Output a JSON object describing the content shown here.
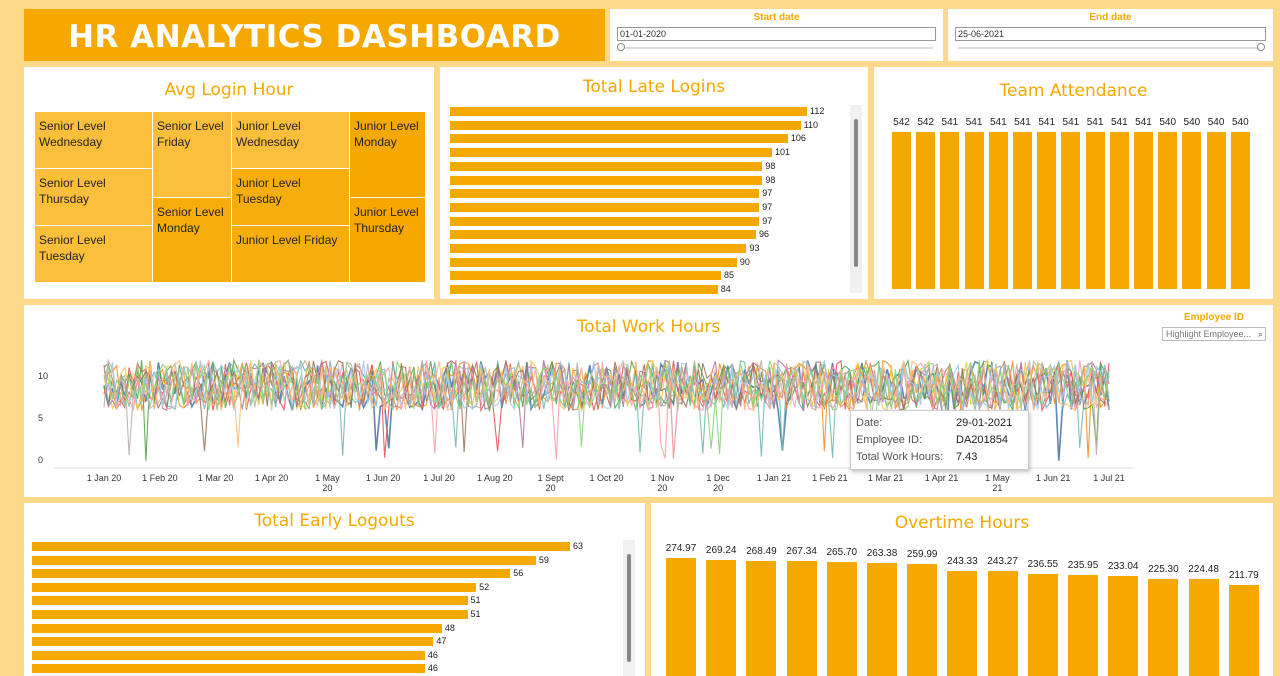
{
  "header": {
    "title": "HR ANALYTICS DASHBOARD"
  },
  "filters": {
    "start": {
      "label": "Start date",
      "value": "01-01-2020"
    },
    "end": {
      "label": "End date",
      "value": "25-06-2021"
    }
  },
  "login": {
    "title": "Avg Login Hour",
    "cells": [
      "Senior Level Wednesday",
      "Senior Level Thursday",
      "Senior Level Tuesday",
      "Senior Level Friday",
      "Senior Level Monday",
      "Junior Level Wednesday",
      "Junior Level Tuesday",
      "Junior Level Friday",
      "Junior Level Monday",
      "Junior Level Thursday"
    ]
  },
  "late": {
    "title": "Total Late Logins",
    "values": [
      112,
      110,
      106,
      101,
      98,
      98,
      97,
      97,
      97,
      96,
      93,
      90,
      85,
      84
    ]
  },
  "attendance": {
    "title": "Team Attendance",
    "values": [
      542,
      542,
      541,
      541,
      541,
      541,
      541,
      541,
      541,
      541,
      541,
      540,
      540,
      540,
      540
    ]
  },
  "work": {
    "title": "Total Work Hours",
    "employee_label": "Employee ID",
    "employee_placeholder": "Highlight Employee...",
    "yticks": [
      "10",
      "5",
      "0"
    ],
    "xticks": [
      "1 Jan 20",
      "1 Feb 20",
      "1 Mar 20",
      "1 Apr 20",
      "1 May 20",
      "1 Jun 20",
      "1 Jul 20",
      "1 Aug 20",
      "1 Sept 20",
      "1 Oct 20",
      "1 Nov 20",
      "1 Dec 20",
      "1 Jan 21",
      "1 Feb 21",
      "1 Mar 21",
      "1 Apr 21",
      "1 May 21",
      "1 Jun 21",
      "1 Jul 21"
    ],
    "tooltip": {
      "date_label": "Date:",
      "date": "29-01-2021",
      "emp_label": "Employee ID:",
      "emp": "DA201854",
      "hours_label": "Total Work Hours:",
      "hours": "7.43"
    },
    "series_colors": [
      "#4e79a7",
      "#f28e2b",
      "#e15759",
      "#76b7b2",
      "#59a14f",
      "#edc948",
      "#b07aa1",
      "#ff9da7",
      "#9c755f",
      "#bab0ac",
      "#a0cbe8",
      "#ffbe7d",
      "#8cd17d"
    ]
  },
  "early": {
    "title": "Total Early Logouts",
    "values": [
      63,
      59,
      56,
      52,
      51,
      51,
      48,
      47,
      46,
      46
    ]
  },
  "overtime": {
    "title": "Overtime Hours",
    "values": [
      274.97,
      269.24,
      268.49,
      267.34,
      265.7,
      263.38,
      259.99,
      243.33,
      243.27,
      236.55,
      235.95,
      233.04,
      225.3,
      224.48,
      211.79
    ],
    "labels": [
      "274.97",
      "269.24",
      "268.49",
      "267.34",
      "265.70",
      "263.38",
      "259.99",
      "243.33",
      "243.27",
      "236.55",
      "235.95",
      "233.04",
      "225.30",
      "224.48",
      "211.79"
    ]
  },
  "chart_data": [
    {
      "type": "heatmap",
      "title": "Avg Login Hour",
      "cells": [
        "Senior Level Wednesday",
        "Senior Level Thursday",
        "Senior Level Tuesday",
        "Senior Level Friday",
        "Senior Level Monday",
        "Junior Level Wednesday",
        "Junior Level Tuesday",
        "Junior Level Friday",
        "Junior Level Monday",
        "Junior Level Thursday"
      ]
    },
    {
      "type": "bar",
      "title": "Total Late Logins",
      "orientation": "horizontal",
      "values": [
        112,
        110,
        106,
        101,
        98,
        98,
        97,
        97,
        97,
        96,
        93,
        90,
        85,
        84
      ]
    },
    {
      "type": "bar",
      "title": "Team Attendance",
      "values": [
        542,
        542,
        541,
        541,
        541,
        541,
        541,
        541,
        541,
        541,
        541,
        540,
        540,
        540,
        540
      ]
    },
    {
      "type": "line",
      "title": "Total Work Hours",
      "x_range": [
        "1 Jan 20",
        "1 Jul 21"
      ],
      "ylim": [
        0,
        12
      ],
      "yticks": [
        0,
        5,
        10
      ],
      "typical_range": [
        5,
        12
      ]
    },
    {
      "type": "bar",
      "title": "Total Early Logouts",
      "orientation": "horizontal",
      "values": [
        63,
        59,
        56,
        52,
        51,
        51,
        48,
        47,
        46,
        46
      ]
    },
    {
      "type": "bar",
      "title": "Overtime Hours",
      "values": [
        274.97,
        269.24,
        268.49,
        267.34,
        265.7,
        263.38,
        259.99,
        243.33,
        243.27,
        236.55,
        235.95,
        233.04,
        225.3,
        224.48,
        211.79
      ]
    }
  ]
}
